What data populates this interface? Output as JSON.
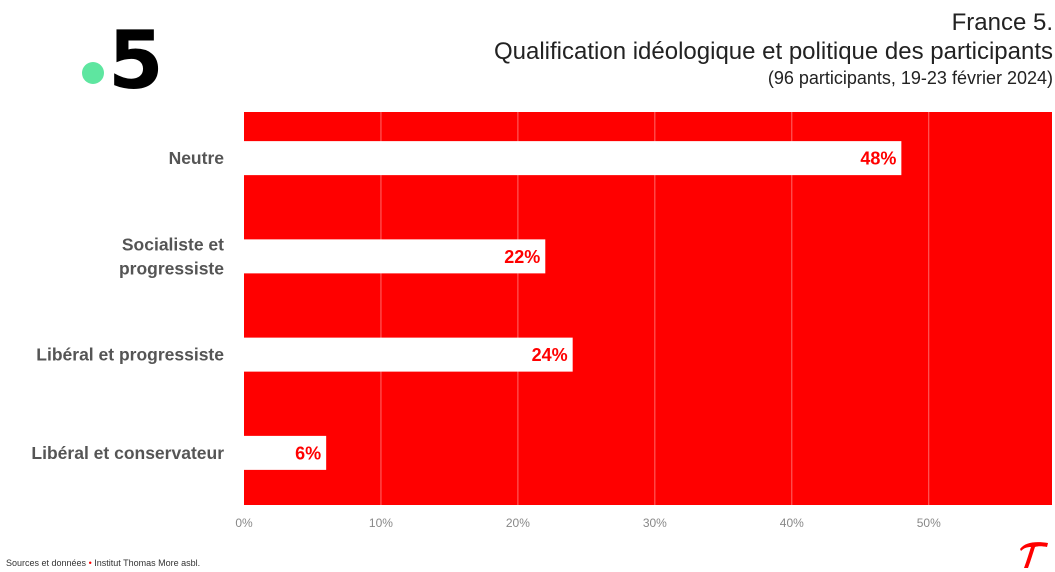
{
  "header": {
    "logo_text": "5",
    "title_line1": "France 5.",
    "title_line2": "Qualification idéologique et politique des participants",
    "title_line3": "(96 participants, 19-23 février 2024)"
  },
  "footer": {
    "text_before": "Sources et données",
    "separator": "•",
    "text_after": "Institut  Thomas More asbl."
  },
  "colors": {
    "plot_background": "#ff0000",
    "bar_fill": "#ffffff",
    "data_label": "#ff0000",
    "logo_dot": "#5ee6a0"
  },
  "chart_data": {
    "type": "bar",
    "orientation": "horizontal",
    "categories": [
      "Neutre",
      "Socialiste et progressiste",
      "Libéral et progressiste",
      "Libéral et conservateur"
    ],
    "category_lines": [
      [
        "Neutre"
      ],
      [
        "Socialiste et",
        "progressiste"
      ],
      [
        "Libéral et progressiste"
      ],
      [
        "Libéral et conservateur"
      ]
    ],
    "values": [
      48,
      22,
      24,
      6
    ],
    "data_labels": [
      "48%",
      "22%",
      "24%",
      "6%"
    ],
    "xlim": [
      0,
      59
    ],
    "xticks": [
      0,
      10,
      20,
      30,
      40,
      50
    ],
    "xtick_labels": [
      "0%",
      "10%",
      "20%",
      "30%",
      "40%",
      "50%"
    ],
    "title": "Qualification idéologique et politique des participants",
    "subtitle": "(96 participants, 19-23 février 2024)",
    "xlabel": "",
    "ylabel": "",
    "grid": true,
    "legend": "none"
  }
}
